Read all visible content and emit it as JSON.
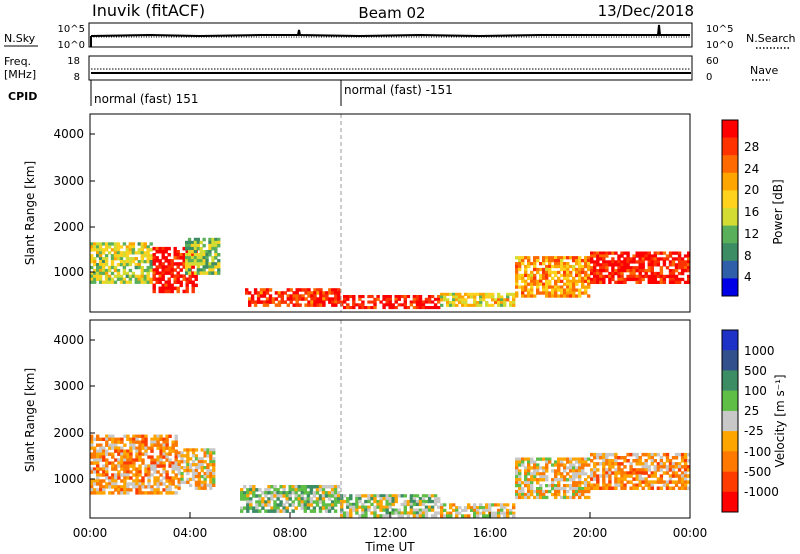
{
  "header": {
    "title_left": "Inuvik (fitACF)",
    "title_center": "Beam 02",
    "title_right": "13/Dec/2018"
  },
  "top_panels": {
    "nsky_label": "N.Sky",
    "nsearch_label": "N.Search",
    "noise_ticks": [
      "10^5",
      "10^0"
    ],
    "freq_label": "Freq.",
    "freq_unit": "[MHz]",
    "freq_ticks": [
      "18",
      "8"
    ],
    "nave_label": "Nave",
    "nave_ticks": [
      "60",
      "0"
    ],
    "cpid_label": "CPID",
    "cpid_segments": [
      {
        "label": "normal (fast) 151",
        "start": "00:00"
      },
      {
        "label": "normal (fast) -151",
        "start": "10:00"
      }
    ]
  },
  "axes": {
    "ylabel": "Slant Range [km]",
    "yticks": [
      "4000",
      "3000",
      "2000",
      "1000"
    ],
    "xlabel": "Time UT",
    "xticks": [
      "00:00",
      "04:00",
      "08:00",
      "12:00",
      "16:00",
      "20:00",
      "00:00"
    ]
  },
  "power_scale": {
    "label": "Power [dB]",
    "ticks": [
      "28",
      "24",
      "20",
      "16",
      "12",
      "8",
      "4"
    ],
    "colors": [
      "#ff0000",
      "#ff3300",
      "#ff6a00",
      "#ffa500",
      "#ffd21e",
      "#d2dc32",
      "#5aaf5a",
      "#3c8c64",
      "#2f5fa8",
      "#0000e6"
    ]
  },
  "velocity_scale": {
    "label": "Velocity [m s⁻¹]",
    "ticks": [
      "1000",
      "500",
      "100",
      "25",
      "-25",
      "-100",
      "-500",
      "-1000"
    ],
    "colors": [
      "#1e32c8",
      "#32508c",
      "#3c8c64",
      "#5fbe46",
      "#c8c8c8",
      "#ffa500",
      "#ff7800",
      "#ff3c00",
      "#ff0000"
    ]
  },
  "chart_data": {
    "type": "heatmap",
    "title": "Inuvik (fitACF)",
    "subtitle": "Beam 02",
    "date": "13/Dec/2018",
    "xlabel": "Time UT",
    "ylabel": "Slant Range [km]",
    "xlim": [
      "00:00",
      "24:00"
    ],
    "ylim": [
      180,
      4500
    ],
    "panels": [
      {
        "name": "Power [dB]",
        "clim": [
          0,
          30
        ],
        "regions": [
          {
            "t0": 0.0,
            "t1": 2.5,
            "r0": 800,
            "r1": 1700,
            "value": 14
          },
          {
            "t0": 2.5,
            "t1": 4.3,
            "r0": 600,
            "r1": 1600,
            "value": 28
          },
          {
            "t0": 3.8,
            "t1": 5.2,
            "r0": 1000,
            "r1": 1800,
            "value": 12
          },
          {
            "t0": 6.2,
            "t1": 10.0,
            "r0": 300,
            "r1": 700,
            "value": 26
          },
          {
            "t0": 10.0,
            "t1": 14.0,
            "r0": 250,
            "r1": 550,
            "value": 28
          },
          {
            "t0": 14.0,
            "t1": 17.0,
            "r0": 300,
            "r1": 600,
            "value": 16
          },
          {
            "t0": 17.0,
            "t1": 20.0,
            "r0": 500,
            "r1": 1400,
            "value": 20
          },
          {
            "t0": 20.0,
            "t1": 24.0,
            "r0": 800,
            "r1": 1500,
            "value": 28
          }
        ]
      },
      {
        "name": "Velocity [m s-1]",
        "clim": [
          -1000,
          1000
        ],
        "regions": [
          {
            "t0": 0.0,
            "t1": 3.5,
            "r0": 700,
            "r1": 2000,
            "value": -300
          },
          {
            "t0": 3.5,
            "t1": 5.0,
            "r0": 800,
            "r1": 1700,
            "value": -150
          },
          {
            "t0": 6.0,
            "t1": 10.0,
            "r0": 300,
            "r1": 900,
            "value": 150
          },
          {
            "t0": 10.0,
            "t1": 14.0,
            "r0": 200,
            "r1": 700,
            "value": 80
          },
          {
            "t0": 14.0,
            "t1": 17.0,
            "r0": 200,
            "r1": 500,
            "value": -50
          },
          {
            "t0": 17.0,
            "t1": 20.0,
            "r0": 600,
            "r1": 1500,
            "value": -150
          },
          {
            "t0": 20.0,
            "t1": 24.0,
            "r0": 800,
            "r1": 1600,
            "value": -300
          }
        ]
      }
    ]
  }
}
